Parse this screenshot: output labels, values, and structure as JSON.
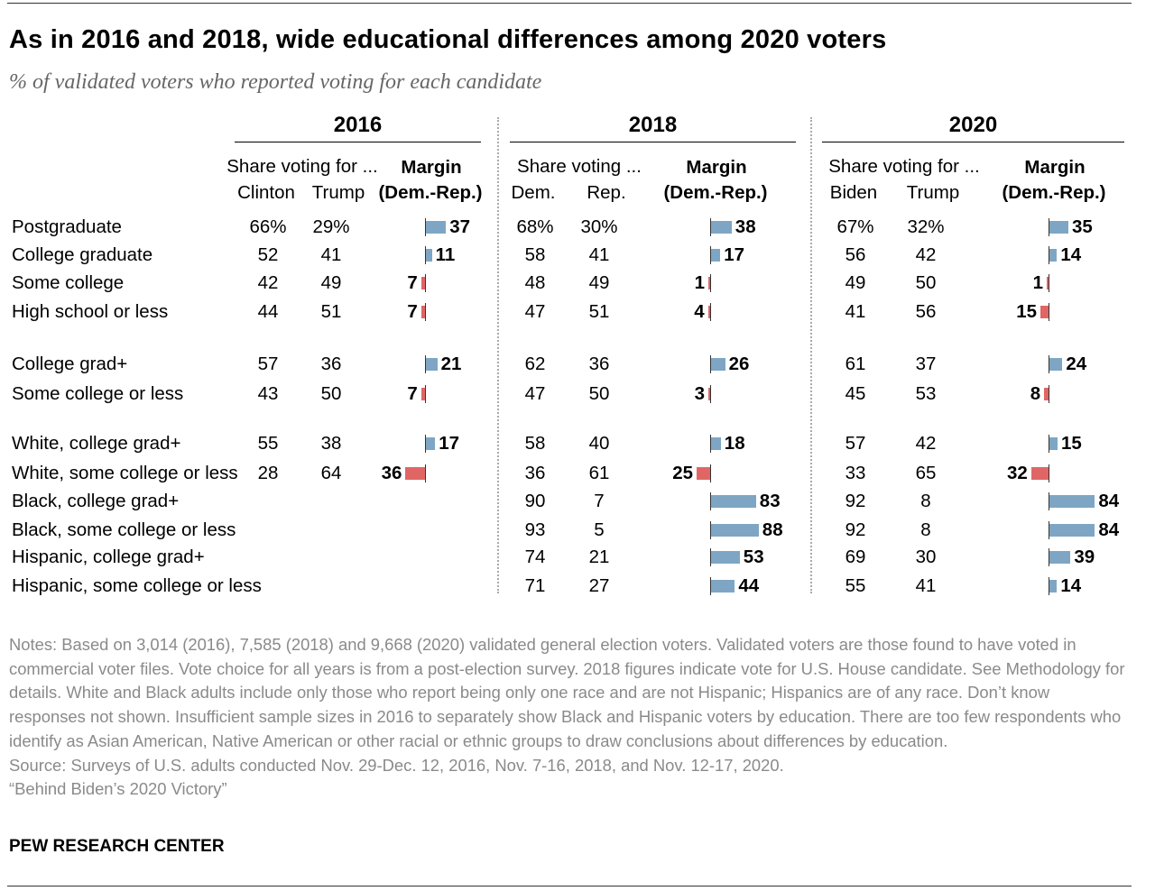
{
  "chart_data": {
    "type": "table",
    "title": "As in 2016 and 2018, wide educational differences among 2020 voters",
    "subtitle": "% of validated voters who reported voting for each candidate",
    "colors": {
      "dem": "#7ea6c4",
      "rep": "#e06666"
    },
    "years": [
      {
        "year": "2016",
        "share_label": "Share voting for ...",
        "dem_label": "Clinton",
        "rep_label": "Trump",
        "margin_label": "Margin",
        "margin_sub": "(Dem.-Rep.)"
      },
      {
        "year": "2018",
        "share_label": "Share voting ...",
        "dem_label": "Dem.",
        "rep_label": "Rep.",
        "margin_label": "Margin",
        "margin_sub": "(Dem.-Rep.)"
      },
      {
        "year": "2020",
        "share_label": "Share voting for ...",
        "dem_label": "Biden",
        "rep_label": "Trump",
        "margin_label": "Margin",
        "margin_sub": "(Dem.-Rep.)"
      }
    ],
    "rows": [
      {
        "label": "Postgraduate",
        "values": [
          [
            "66%",
            "29%",
            37
          ],
          [
            "68%",
            "30%",
            38
          ],
          [
            "67%",
            "32%",
            35
          ]
        ]
      },
      {
        "label": "College graduate",
        "values": [
          [
            "52",
            "41",
            11
          ],
          [
            "58",
            "41",
            17
          ],
          [
            "56",
            "42",
            14
          ]
        ]
      },
      {
        "label": "Some college",
        "values": [
          [
            "42",
            "49",
            -7
          ],
          [
            "48",
            "49",
            -1
          ],
          [
            "49",
            "50",
            -1
          ]
        ]
      },
      {
        "label": "High school or less",
        "values": [
          [
            "44",
            "51",
            -7
          ],
          [
            "47",
            "51",
            -4
          ],
          [
            "41",
            "56",
            -15
          ]
        ]
      },
      {
        "label": "College grad+",
        "values": [
          [
            "57",
            "36",
            21
          ],
          [
            "62",
            "36",
            26
          ],
          [
            "61",
            "37",
            24
          ]
        ]
      },
      {
        "label": "Some college or less",
        "values": [
          [
            "43",
            "50",
            -7
          ],
          [
            "47",
            "50",
            -3
          ],
          [
            "45",
            "53",
            -8
          ]
        ]
      },
      {
        "label": "White, college grad+",
        "values": [
          [
            "55",
            "38",
            17
          ],
          [
            "58",
            "40",
            18
          ],
          [
            "57",
            "42",
            15
          ]
        ]
      },
      {
        "label": "White, some college or less",
        "values": [
          [
            "28",
            "64",
            -36
          ],
          [
            "36",
            "61",
            -25
          ],
          [
            "33",
            "65",
            -32
          ]
        ]
      },
      {
        "label": "Black, college grad+",
        "values": [
          null,
          [
            "90",
            "7",
            83
          ],
          [
            "92",
            "8",
            84
          ]
        ]
      },
      {
        "label": "Black, some college or less",
        "values": [
          null,
          [
            "93",
            "5",
            88
          ],
          [
            "92",
            "8",
            84
          ]
        ]
      },
      {
        "label": "Hispanic, college grad+",
        "values": [
          null,
          [
            "74",
            "21",
            53
          ],
          [
            "69",
            "30",
            39
          ]
        ]
      },
      {
        "label": "Hispanic, some college or less",
        "values": [
          null,
          [
            "71",
            "27",
            44
          ],
          [
            "55",
            "41",
            14
          ]
        ]
      }
    ]
  },
  "notes": [
    "Notes: Based on 3,014 (2016), 7,585 (2018) and 9,668 (2020) validated general election voters. Validated voters are those found to have voted in commercial voter files. Vote choice for all years is from a post-election survey. 2018 figures indicate vote for U.S. House candidate. See Methodology for details. White and Black adults include only those who report being only one race and are not Hispanic; Hispanics are of any race. Don’t know responses not shown. Insufficient sample sizes in 2016 to separately show Black and Hispanic voters by education. There are too few respondents who identify as Asian American, Native American or other racial or ethnic groups to draw conclusions about differences by education.",
    "Source: Surveys of U.S. adults conducted Nov. 29-Dec. 12, 2016, Nov. 7-16, 2018, and Nov. 12-17, 2020.",
    "“Behind Biden’s 2020 Victory”"
  ],
  "brand": "PEW RESEARCH CENTER"
}
